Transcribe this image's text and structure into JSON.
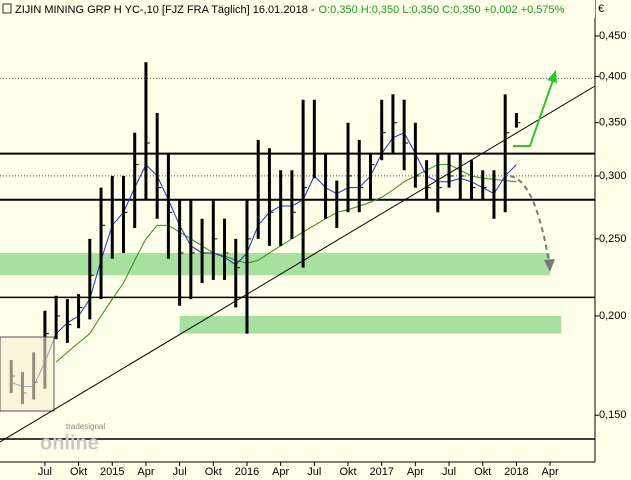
{
  "chart_data": {
    "type": "ohlc",
    "title": "ZIJIN MINING GRP H YC-,10 [FJZ FRA  Täglich] 16.01.2018 -",
    "quote": "O:0,350 H:0,350 L:0,350 C:0,350 +0,002 +0,575%",
    "currency": "€",
    "watermark": "tradesignal",
    "watermark_brand": "online",
    "log_scale": true,
    "x": [
      "2014-04",
      "2014-05",
      "2014-06",
      "2014-07",
      "2014-08",
      "2014-09",
      "2014-10",
      "2014-11",
      "2014-12",
      "2015-01",
      "2015-02",
      "2015-03",
      "2015-04",
      "2015-05",
      "2015-06",
      "2015-07",
      "2015-08",
      "2015-09",
      "2015-10",
      "2015-11",
      "2015-12",
      "2016-01",
      "2016-02",
      "2016-03",
      "2016-04",
      "2016-05",
      "2016-06",
      "2016-07",
      "2016-08",
      "2016-09",
      "2016-10",
      "2016-11",
      "2016-12",
      "2017-01",
      "2017-02",
      "2017-03",
      "2017-04",
      "2017-05",
      "2017-06",
      "2017-07",
      "2017-08",
      "2017-09",
      "2017-10",
      "2017-11",
      "2017-12",
      "2018-01"
    ],
    "high": [
      0.176,
      0.17,
      0.18,
      0.203,
      0.212,
      0.21,
      0.213,
      0.25,
      0.29,
      0.3,
      0.3,
      0.34,
      0.417,
      0.36,
      0.32,
      0.28,
      0.28,
      0.265,
      0.28,
      0.265,
      0.25,
      0.28,
      0.333,
      0.325,
      0.305,
      0.305,
      0.374,
      0.374,
      0.32,
      0.296,
      0.35,
      0.333,
      0.32,
      0.374,
      0.38,
      0.374,
      0.35,
      0.314,
      0.32,
      0.32,
      0.32,
      0.314,
      0.305,
      0.305,
      0.38,
      0.36
    ],
    "low": [
      0.16,
      0.155,
      0.157,
      0.162,
      0.187,
      0.185,
      0.193,
      0.198,
      0.21,
      0.236,
      0.24,
      0.258,
      0.28,
      0.265,
      0.236,
      0.206,
      0.21,
      0.22,
      0.222,
      0.222,
      0.205,
      0.19,
      0.25,
      0.245,
      0.245,
      0.25,
      0.23,
      0.298,
      0.265,
      0.258,
      0.27,
      0.27,
      0.28,
      0.314,
      0.32,
      0.305,
      0.29,
      0.28,
      0.27,
      0.29,
      0.28,
      0.28,
      0.28,
      0.265,
      0.27,
      0.345
    ],
    "close": [
      0.168,
      0.16,
      0.165,
      0.19,
      0.2,
      0.195,
      0.205,
      0.225,
      0.26,
      0.28,
      0.27,
      0.31,
      0.33,
      0.29,
      0.27,
      0.24,
      0.24,
      0.24,
      0.25,
      0.24,
      0.23,
      0.25,
      0.28,
      0.27,
      0.28,
      0.27,
      0.29,
      0.32,
      0.28,
      0.28,
      0.3,
      0.29,
      0.31,
      0.34,
      0.35,
      0.33,
      0.3,
      0.29,
      0.29,
      0.3,
      0.3,
      0.29,
      0.29,
      0.28,
      0.34,
      0.35
    ],
    "ma_fast": {
      "color": "#1f2fcf",
      "values": [
        0.165,
        0.163,
        0.163,
        0.175,
        0.19,
        0.196,
        0.2,
        0.21,
        0.235,
        0.26,
        0.27,
        0.29,
        0.31,
        0.3,
        0.28,
        0.26,
        0.245,
        0.24,
        0.24,
        0.237,
        0.232,
        0.24,
        0.26,
        0.27,
        0.275,
        0.275,
        0.28,
        0.3,
        0.29,
        0.285,
        0.29,
        0.29,
        0.3,
        0.32,
        0.335,
        0.34,
        0.32,
        0.3,
        0.295,
        0.295,
        0.298,
        0.295,
        0.29,
        0.285,
        0.3,
        0.31
      ]
    },
    "ma_slow": {
      "color": "#2e8b1e",
      "values": [
        null,
        null,
        null,
        null,
        0.175,
        0.18,
        0.185,
        0.19,
        0.2,
        0.21,
        0.22,
        0.235,
        0.25,
        0.26,
        0.26,
        0.255,
        0.25,
        0.245,
        0.24,
        0.238,
        0.235,
        0.233,
        0.235,
        0.24,
        0.245,
        0.25,
        0.255,
        0.26,
        0.265,
        0.27,
        0.272,
        0.275,
        0.278,
        0.282,
        0.288,
        0.295,
        0.3,
        0.305,
        0.31,
        0.31,
        0.305,
        0.3,
        0.298,
        0.297,
        0.296,
        0.295
      ]
    },
    "levels": [
      0.32,
      0.28,
      0.211,
      0.14
    ],
    "dotted_levels": [
      0.398,
      0.3
    ],
    "zones": [
      {
        "x": [
          "2014-03",
          "2018-04"
        ],
        "y": [
          0.225,
          0.24
        ]
      },
      {
        "x": [
          "2015-07",
          "2018-05"
        ],
        "y": [
          0.19,
          0.2
        ]
      }
    ],
    "xlim": [
      "2014-03",
      "2018-08"
    ],
    "ylim": [
      0.131,
      0.474
    ],
    "xticks": [
      {
        "value": "2014-07",
        "label": "Jul"
      },
      {
        "value": "2014-10",
        "label": "Okt"
      },
      {
        "value": "2015-01",
        "label": "2015"
      },
      {
        "value": "2015-04",
        "label": "Apr"
      },
      {
        "value": "2015-07",
        "label": "Jul"
      },
      {
        "value": "2015-10",
        "label": "Okt"
      },
      {
        "value": "2016-01",
        "label": "2016"
      },
      {
        "value": "2016-04",
        "label": "Apr"
      },
      {
        "value": "2016-07",
        "label": "Jul"
      },
      {
        "value": "2016-10",
        "label": "Okt"
      },
      {
        "value": "2017-01",
        "label": "2017"
      },
      {
        "value": "2017-04",
        "label": "Apr"
      },
      {
        "value": "2017-07",
        "label": "Jul"
      },
      {
        "value": "2017-10",
        "label": "Okt"
      },
      {
        "value": "2018-01",
        "label": "2018"
      },
      {
        "value": "2018-04",
        "label": "Apr"
      }
    ],
    "yticks": [
      {
        "value": 0.15,
        "label": "0,150"
      },
      {
        "value": 0.2,
        "label": "0,200"
      },
      {
        "value": 0.25,
        "label": "0,250"
      },
      {
        "value": 0.3,
        "label": "0,300"
      },
      {
        "value": 0.35,
        "label": "0,350"
      },
      {
        "value": 0.4,
        "label": "0,400"
      },
      {
        "value": 0.45,
        "label": "0,450"
      }
    ]
  }
}
